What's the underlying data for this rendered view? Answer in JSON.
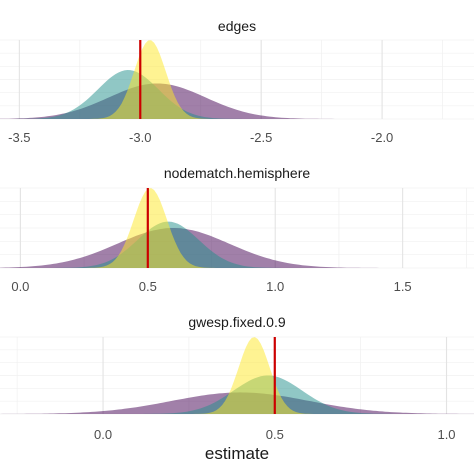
{
  "chart_data": {
    "type": "area",
    "xlabel": "estimate",
    "ylabel": "",
    "grid": true,
    "legend": "none",
    "series_colors": [
      "#440154",
      "#21908C",
      "#FDE725"
    ],
    "series_opacity": 0.5,
    "reference_line_color": "#CC0000",
    "panels": [
      {
        "title": "edges",
        "xlim": [
          -3.58,
          -1.62
        ],
        "ticks": [
          -3.5,
          -3.0,
          -2.5,
          -2.0
        ],
        "tick_labels": [
          "-3.5",
          "-3.0",
          "-2.5",
          "-2.0"
        ],
        "reference_x": -3.0,
        "densities": [
          {
            "mean": -2.93,
            "sd": 0.2,
            "peak": 0.45
          },
          {
            "mean": -3.05,
            "sd": 0.125,
            "peak": 0.62
          },
          {
            "mean": -2.96,
            "sd": 0.065,
            "peak": 1.0
          }
        ]
      },
      {
        "title": "nodematch.hemisphere",
        "xlim": [
          -0.08,
          1.78
        ],
        "ticks": [
          0.0,
          0.5,
          1.0,
          1.5
        ],
        "tick_labels": [
          "0.0",
          "0.5",
          "1.0",
          "1.5"
        ],
        "reference_x": 0.5,
        "densities": [
          {
            "mean": 0.6,
            "sd": 0.22,
            "peak": 0.5
          },
          {
            "mean": 0.58,
            "sd": 0.12,
            "peak": 0.58
          },
          {
            "mean": 0.51,
            "sd": 0.065,
            "peak": 1.0
          }
        ]
      },
      {
        "title": "gwesp.fixed.0.9",
        "xlim": [
          -0.3,
          1.08
        ],
        "ticks": [
          0.0,
          0.5,
          1.0
        ],
        "tick_labels": [
          "0.0",
          "0.5",
          "1.0"
        ],
        "reference_x": 0.5,
        "densities": [
          {
            "mean": 0.4,
            "sd": 0.2,
            "peak": 0.28
          },
          {
            "mean": 0.48,
            "sd": 0.1,
            "peak": 0.5
          },
          {
            "mean": 0.44,
            "sd": 0.045,
            "peak": 1.0
          }
        ]
      }
    ]
  }
}
